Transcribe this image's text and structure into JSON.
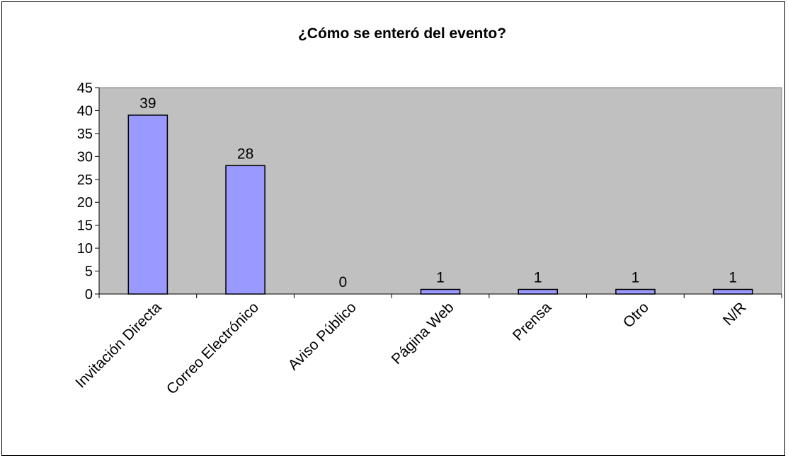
{
  "chart_data": {
    "type": "bar",
    "title": "¿Cómo se enteró del evento?",
    "xlabel": "",
    "ylabel": "",
    "categories": [
      "Invitación Directa",
      "Correo Electrónico",
      "Aviso Público",
      "Página Web",
      "Prensa",
      "Otro",
      "N/R"
    ],
    "values": [
      39,
      28,
      0,
      1,
      1,
      1,
      1
    ],
    "ylim": [
      0,
      45
    ],
    "yticks": [
      0,
      5,
      10,
      15,
      20,
      25,
      30,
      35,
      40,
      45
    ],
    "data_labels": [
      "39",
      "28",
      "0",
      "1",
      "1",
      "1",
      "1"
    ],
    "grid": false,
    "legend": "none",
    "colors": {
      "bar_fill": "#9999ff",
      "bar_stroke": "#000000",
      "plot_background": "#c0c0c0"
    }
  }
}
